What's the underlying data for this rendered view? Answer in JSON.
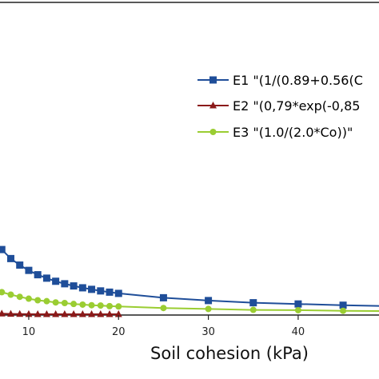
{
  "chart_data": {
    "type": "line",
    "xlabel": "Soil cohesion (kPa)",
    "xlim": [
      6.8,
      49
    ],
    "ylim": [
      0,
      1
    ],
    "x_ticks": [
      10,
      20,
      30,
      40
    ],
    "x_tick_labels": [
      "10",
      "20",
      "30",
      "40"
    ],
    "grid": false,
    "legend_position": "top-right",
    "series": [
      {
        "name": "E1 \"(1/(0.89+0.56(C",
        "color": "#1f4e99",
        "marker": "square",
        "x": [
          7,
          8,
          9,
          10,
          11,
          12,
          13,
          14,
          15,
          16,
          17,
          18,
          19,
          20,
          25,
          30,
          35,
          40,
          45,
          50
        ],
        "y": [
          0.208,
          0.179,
          0.158,
          0.141,
          0.127,
          0.116,
          0.106,
          0.098,
          0.091,
          0.085,
          0.08,
          0.075,
          0.071,
          0.067,
          0.053,
          0.044,
          0.037,
          0.033,
          0.029,
          0.026
        ]
      },
      {
        "name": "E2 \"(0,79*exp(-0,85",
        "color": "#8b1a1a",
        "marker": "triangle",
        "x": [
          7,
          8,
          9,
          10,
          11,
          12,
          13,
          14,
          15,
          16,
          17,
          18,
          19,
          20
        ],
        "y": [
          0.002,
          0.001,
          0.0005,
          0.0002,
          0.0001,
          0,
          0,
          0,
          0,
          0,
          0,
          0,
          0,
          0
        ]
      },
      {
        "name": "E3 \"(1.0/(2.0*Co))\"",
        "color": "#9acd32",
        "marker": "circle",
        "x": [
          7,
          8,
          9,
          10,
          11,
          12,
          13,
          14,
          15,
          16,
          17,
          18,
          19,
          20,
          25,
          30,
          35,
          40,
          45,
          50
        ],
        "y": [
          0.071,
          0.063,
          0.056,
          0.05,
          0.045,
          0.042,
          0.038,
          0.036,
          0.033,
          0.031,
          0.029,
          0.028,
          0.026,
          0.025,
          0.02,
          0.017,
          0.014,
          0.013,
          0.011,
          0.01
        ]
      }
    ]
  }
}
